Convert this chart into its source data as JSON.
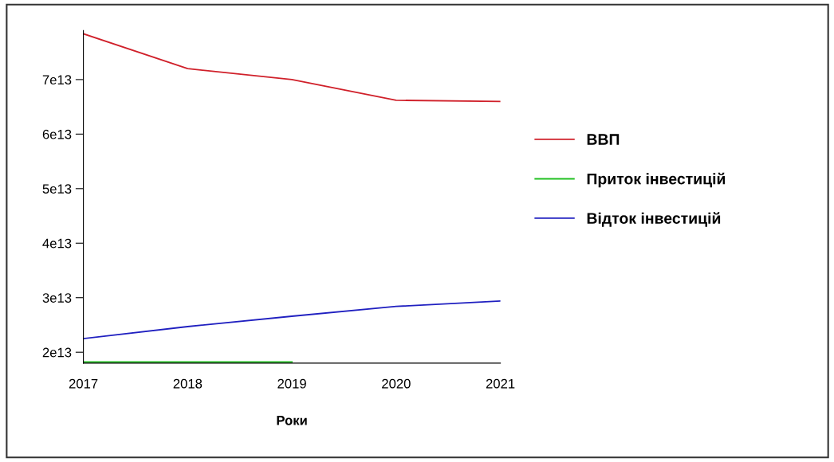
{
  "chart_data": {
    "type": "line",
    "xlabel": "Роки",
    "x": [
      2017,
      2018,
      2019,
      2020,
      2021
    ],
    "series": [
      {
        "name": "ВВП",
        "color": "#d0202a",
        "values": [
          78400000000000.0,
          72000000000000.0,
          70000000000000.0,
          66200000000000.0,
          66000000000000.0
        ]
      },
      {
        "name": "Приток інвестицій",
        "color": "#20c020",
        "values": [
          18200000000000.0,
          18200000000000.0,
          18200000000000.0,
          null,
          null
        ]
      },
      {
        "name": "Відток інвестицій",
        "color": "#2020c0",
        "values": [
          22500000000000.0,
          24700000000000.0,
          26600000000000.0,
          28400000000000.0,
          29400000000000.0
        ]
      }
    ],
    "xlim": [
      2017,
      2021
    ],
    "xticks": [
      2017,
      2018,
      2019,
      2020,
      2021
    ],
    "ylim": [
      18000000000000.0,
      79000000000000.0
    ],
    "yticks": [
      {
        "value": 20000000000000.0,
        "label": "2e13"
      },
      {
        "value": 30000000000000.0,
        "label": "3e13"
      },
      {
        "value": 40000000000000.0,
        "label": "4e13"
      },
      {
        "value": 50000000000000.0,
        "label": "5e13"
      },
      {
        "value": 60000000000000.0,
        "label": "6e13"
      },
      {
        "value": 70000000000000.0,
        "label": "7e13"
      }
    ],
    "legend": "right",
    "grid": false,
    "marker": "none",
    "line_style": "solid"
  }
}
